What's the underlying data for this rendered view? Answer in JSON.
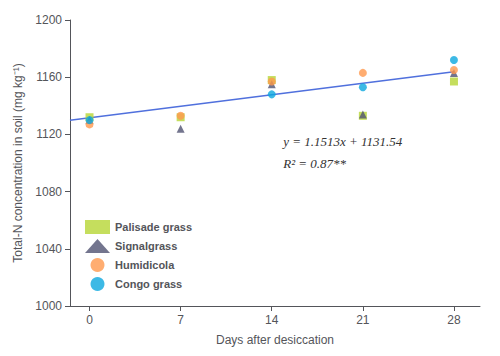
{
  "chart_data": {
    "type": "scatter",
    "xlabel": "Days after desiccation",
    "ylabel": "Total-N concentration in soil (mg kg⁻¹)",
    "x": [
      0,
      7,
      14,
      21,
      28
    ],
    "series": [
      {
        "type": "line",
        "line_style": "solid",
        "x": [
          -1.5,
          28
        ],
        "values": [
          1129.81305,
          1163.7764
        ]
      },
      {
        "name": "Palisade grass",
        "type": "scatter",
        "marker": "square",
        "values": [
          1132,
          1132,
          1158,
          1133,
          1157
        ]
      },
      {
        "name": "Signalgrass",
        "type": "scatter",
        "marker": "triangle",
        "values": [
          1130,
          1124,
          1155,
          1134,
          1163
        ]
      },
      {
        "name": "Humidicola",
        "type": "scatter",
        "marker": "circle",
        "values": [
          1127,
          1133,
          1157,
          1163,
          1165
        ]
      },
      {
        "name": "Congo grass",
        "type": "scatter",
        "marker": "circle",
        "values": [
          1130,
          null,
          1148,
          1153,
          1172
        ]
      }
    ],
    "annotations": [
      "y = 1.1513x + 1131.54",
      "R² = 0.87**"
    ],
    "xlim": [
      -1.5,
      30
    ],
    "xticks": [
      0,
      7,
      14,
      21,
      28
    ],
    "ylim": [
      1000,
      1200
    ],
    "yticks": [
      1000,
      1040,
      1080,
      1120,
      1160,
      1200
    ],
    "grid": false,
    "legend": "lower left"
  }
}
